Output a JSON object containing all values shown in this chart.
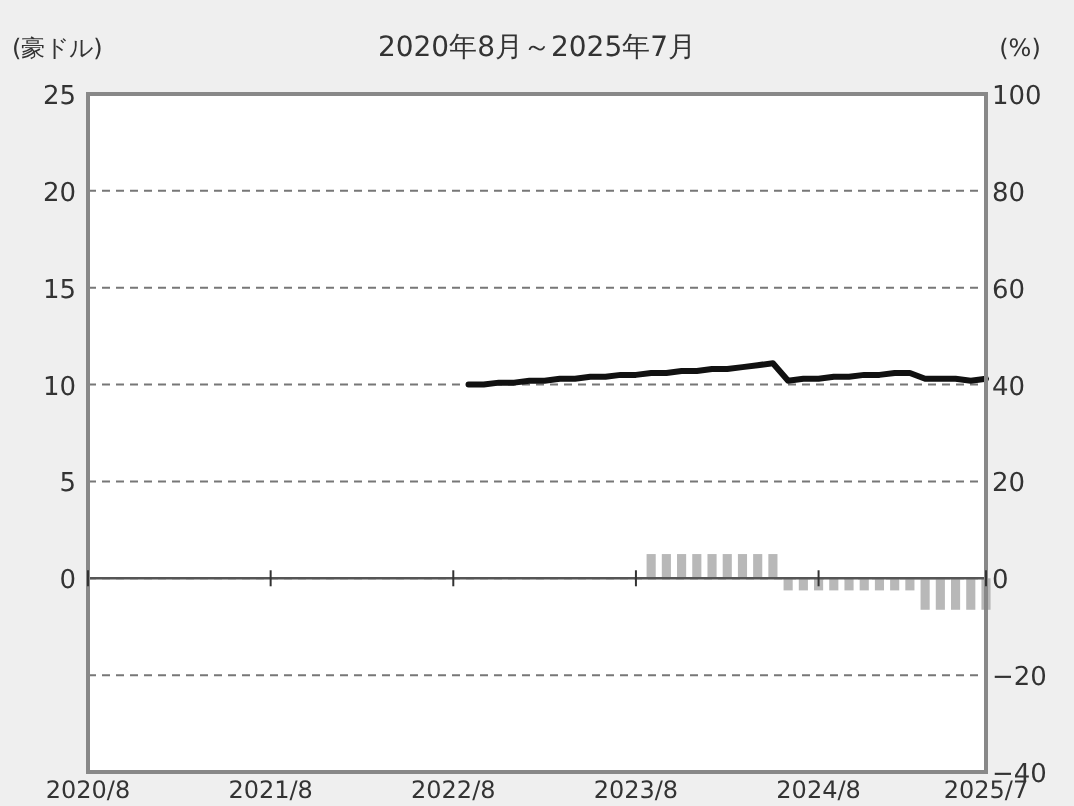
{
  "chart_data": {
    "type": "line",
    "title": "2020年8月～2025年7月",
    "ylabel": "(豪ドル)",
    "y2label": "(%)",
    "xlim": [
      "2020-08",
      "2025-07"
    ],
    "xticks": [
      {
        "value": "2020-08",
        "label": "2020/8"
      },
      {
        "value": "2021-08",
        "label": "2021/8"
      },
      {
        "value": "2022-08",
        "label": "2022/8"
      },
      {
        "value": "2023-08",
        "label": "2023/8"
      },
      {
        "value": "2024-08",
        "label": "2024/8"
      },
      {
        "value": "2025-07",
        "label": "2025/7"
      }
    ],
    "ylim": [
      -10,
      25
    ],
    "yticks": [
      0,
      5,
      10,
      15,
      20,
      25
    ],
    "y2lim": [
      -40,
      100
    ],
    "y2ticks": [
      -40,
      -20,
      0,
      20,
      40,
      60,
      80,
      100
    ],
    "grid": "y",
    "line_style": "solid",
    "marker": "none",
    "ref_lines": [
      {
        "axis": "y",
        "value": 0,
        "color": "#555555",
        "line_style": "solid"
      }
    ],
    "series": [
      {
        "type": "bar",
        "axis": "y2",
        "color": "#b8b8b8",
        "x": [
          "2023-09",
          "2023-10",
          "2023-11",
          "2023-12",
          "2024-01",
          "2024-02",
          "2024-03",
          "2024-04",
          "2024-05",
          "2024-06",
          "2024-07",
          "2024-08",
          "2024-09",
          "2024-10",
          "2024-11",
          "2024-12",
          "2025-01",
          "2025-02",
          "2025-03",
          "2025-04",
          "2025-05",
          "2025-06",
          "2025-07"
        ],
        "values": [
          5,
          5,
          5,
          5,
          5,
          5,
          5,
          5,
          5,
          -2.5,
          -2.5,
          -2.5,
          -2.5,
          -2.5,
          -2.5,
          -2.5,
          -2.5,
          -2.5,
          -6.5,
          -6.5,
          -6.5,
          -6.5,
          -6.5
        ]
      },
      {
        "axis": "y",
        "color": "#111111",
        "x": [
          "2022-09",
          "2022-10",
          "2022-11",
          "2022-12",
          "2023-01",
          "2023-02",
          "2023-03",
          "2023-04",
          "2023-05",
          "2023-06",
          "2023-07",
          "2023-08",
          "2023-09",
          "2023-10",
          "2023-11",
          "2023-12",
          "2024-01",
          "2024-02",
          "2024-03",
          "2024-04",
          "2024-05",
          "2024-06",
          "2024-07",
          "2024-08",
          "2024-09",
          "2024-10",
          "2024-11",
          "2024-12",
          "2025-01",
          "2025-02",
          "2025-03",
          "2025-04",
          "2025-05",
          "2025-06",
          "2025-07"
        ],
        "values": [
          10.0,
          10.0,
          10.1,
          10.1,
          10.2,
          10.2,
          10.3,
          10.3,
          10.4,
          10.4,
          10.5,
          10.5,
          10.6,
          10.6,
          10.7,
          10.7,
          10.8,
          10.8,
          10.9,
          11.0,
          11.1,
          10.2,
          10.3,
          10.3,
          10.4,
          10.4,
          10.5,
          10.5,
          10.6,
          10.6,
          10.3,
          10.3,
          10.3,
          10.2,
          10.3
        ]
      }
    ]
  }
}
